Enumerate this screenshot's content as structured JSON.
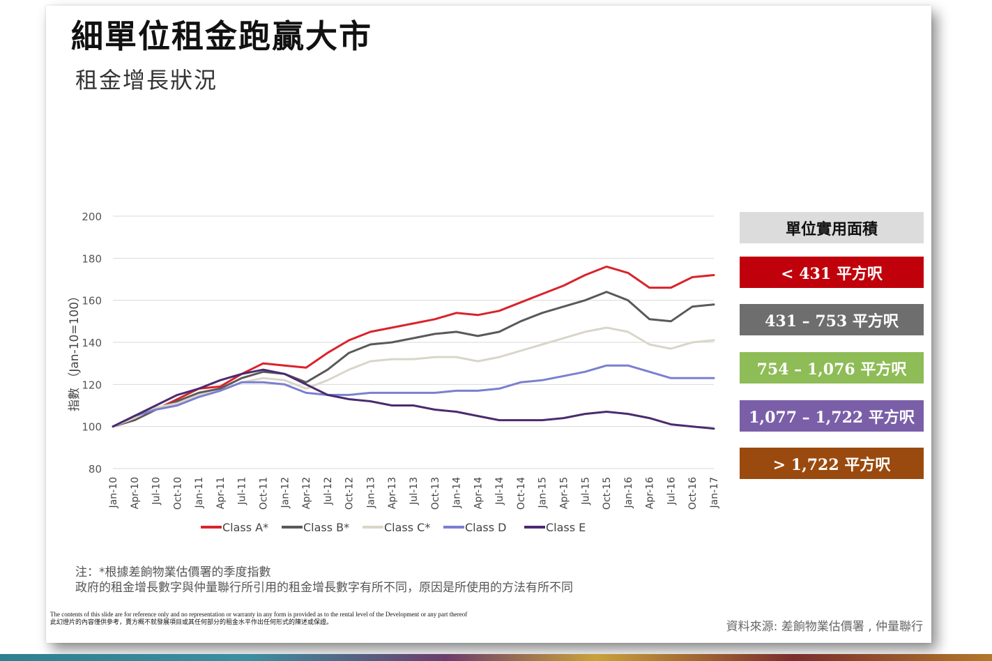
{
  "title": "細單位租金跑贏大市",
  "subtitle": "租金增長狀況",
  "size_legend": {
    "header": "單位實用面積",
    "items": [
      {
        "label": "< 431 平方呎",
        "color": "#c0000b"
      },
      {
        "label": "431 – 753 平方呎",
        "color": "#6e6e6e"
      },
      {
        "label": "754 – 1,076 平方呎",
        "color": "#8ebc56"
      },
      {
        "label": "1,077 – 1,722 平方呎",
        "color": "#7a5fa8"
      },
      {
        "label": "> 1,722 平方呎",
        "color": "#9a4a0e"
      }
    ]
  },
  "chart_data": {
    "type": "line",
    "ylabel": "指數 （Jan-10=100）",
    "ylim": [
      80,
      200
    ],
    "yticks": [
      80,
      100,
      120,
      140,
      160,
      180,
      200
    ],
    "grid": true,
    "legend_position": "bottom",
    "x": [
      "Jan-10",
      "Apr-10",
      "Jul-10",
      "Oct-10",
      "Jan-11",
      "Apr-11",
      "Jul-11",
      "Oct-11",
      "Jan-12",
      "Apr-12",
      "Jul-12",
      "Oct-12",
      "Jan-13",
      "Apr-13",
      "Jul-13",
      "Oct-13",
      "Jan-14",
      "Apr-14",
      "Jul-14",
      "Oct-14",
      "Jan-15",
      "Apr-15",
      "Jul-15",
      "Oct-15",
      "Jan-16",
      "Apr-16",
      "Jul-16",
      "Oct-16",
      "Jan-17"
    ],
    "series": [
      {
        "name": "Class A*",
        "color": "#d9232b",
        "values": [
          100,
          103,
          108,
          113,
          118,
          119,
          125,
          130,
          129,
          128,
          135,
          141,
          145,
          147,
          149,
          151,
          154,
          153,
          155,
          159,
          163,
          167,
          172,
          176,
          173,
          166,
          166,
          171,
          172
        ]
      },
      {
        "name": "Class B*",
        "color": "#595959",
        "values": [
          100,
          103,
          108,
          112,
          116,
          118,
          123,
          126,
          125,
          121,
          127,
          135,
          139,
          140,
          142,
          144,
          145,
          143,
          145,
          150,
          154,
          157,
          160,
          164,
          160,
          151,
          150,
          157,
          158
        ]
      },
      {
        "name": "Class C*",
        "color": "#d9d6c8",
        "values": [
          100,
          104,
          109,
          111,
          115,
          117,
          121,
          123,
          122,
          118,
          122,
          127,
          131,
          132,
          132,
          133,
          133,
          131,
          133,
          136,
          139,
          142,
          145,
          147,
          145,
          139,
          137,
          140,
          141
        ]
      },
      {
        "name": "Class D",
        "color": "#7b7fd0",
        "values": [
          100,
          105,
          108,
          110,
          114,
          117,
          121,
          121,
          120,
          116,
          115,
          115,
          116,
          116,
          116,
          116,
          117,
          117,
          118,
          121,
          122,
          124,
          126,
          129,
          129,
          126,
          123,
          123,
          123
        ]
      },
      {
        "name": "Class E",
        "color": "#4b2a6e",
        "values": [
          100,
          105,
          110,
          115,
          118,
          122,
          125,
          127,
          125,
          120,
          115,
          113,
          112,
          110,
          110,
          108,
          107,
          105,
          103,
          103,
          103,
          104,
          106,
          107,
          106,
          104,
          101,
          100,
          99
        ]
      }
    ]
  },
  "notes": {
    "line1": "注：*根據差餉物業估價署的季度指數",
    "line2": "政府的租金增長數字與仲量聯行所引用的租金增長數字有所不同，原因是所使用的方法有所不同"
  },
  "disclaimer": {
    "en": "The contents of this slide are for reference only and no representation or warranty in any form is provided as to the rental level of the Development or any part thereof",
    "zh": "此幻燈片的內容僅供參考，賣方概不就發展項目或其任何部分的租金水平作出任何形式的陳述或保證。"
  },
  "source": "資料來源: 差餉物業估價署 , 仲量聯行"
}
